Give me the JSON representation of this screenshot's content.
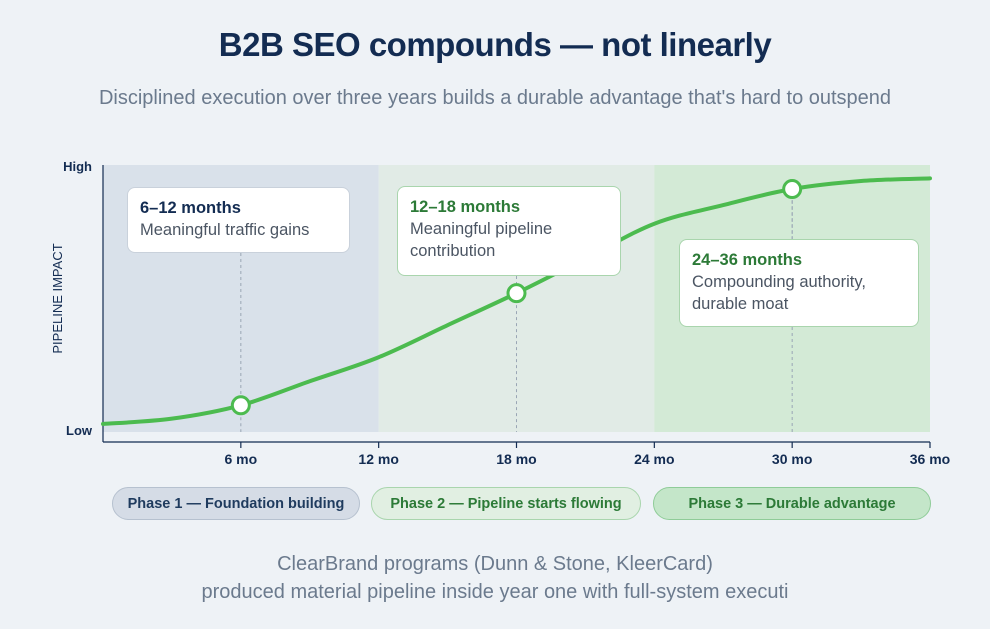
{
  "title": "B2B SEO compounds — not linearly",
  "subtitle": "Disciplined execution over three years builds a durable advantage that's hard to outspend",
  "colors": {
    "curve": "#4cbb4f",
    "phase1_band": "#d9e1ea",
    "phase2_band": "#e1ebe6",
    "phase3_band": "#d3ead6",
    "axis": "#132c52"
  },
  "chart_data": {
    "type": "line",
    "ylabel": "PIPELINE IMPACT",
    "y_tick_labels": [
      "Low",
      "High"
    ],
    "xlim": [
      0,
      36
    ],
    "ylim": [
      0,
      100
    ],
    "x_ticks": [
      {
        "value": 6,
        "label": "6 mo"
      },
      {
        "value": 12,
        "label": "12 mo"
      },
      {
        "value": 18,
        "label": "18 mo"
      },
      {
        "value": 24,
        "label": "24 mo"
      },
      {
        "value": 30,
        "label": "30 mo"
      },
      {
        "value": 36,
        "label": "36 mo"
      }
    ],
    "series": [
      {
        "x": [
          0,
          3,
          6,
          9,
          12,
          15,
          18,
          21,
          24,
          27,
          30,
          33,
          36
        ],
        "values": [
          3,
          5,
          10,
          19,
          28,
          40,
          52,
          65,
          78,
          85,
          91,
          94,
          95
        ]
      }
    ],
    "markers": [
      {
        "x": 6,
        "y": 10
      },
      {
        "x": 18,
        "y": 52
      },
      {
        "x": 30,
        "y": 91
      }
    ],
    "phases": [
      {
        "start": 0,
        "end": 12,
        "label": "Phase 1 — Foundation building"
      },
      {
        "start": 12,
        "end": 24,
        "label": "Phase 2 — Pipeline starts flowing"
      },
      {
        "start": 24,
        "end": 36,
        "label": "Phase 3 — Durable advantage"
      }
    ],
    "callouts": [
      {
        "period": "6–12 months",
        "text": "Meaningful traffic gains"
      },
      {
        "period": "12–18 months",
        "text": "Meaningful pipeline\ncontribution"
      },
      {
        "period": "24–36 months",
        "text": "Compounding authority,\ndurable moat"
      }
    ]
  },
  "footer": "ClearBrand programs (Dunn & Stone, KleerCard)\nproduced material pipeline inside year one with full-system executi"
}
